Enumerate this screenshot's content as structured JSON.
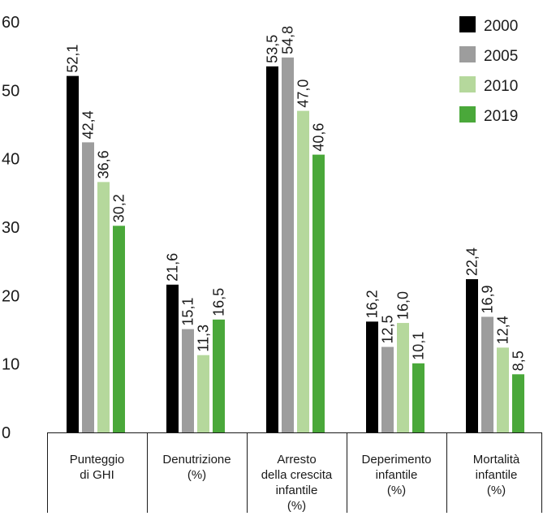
{
  "chart_data": {
    "type": "bar",
    "title": "",
    "xlabel": "",
    "ylabel": "",
    "ylim": [
      0,
      60
    ],
    "yticks": [
      0,
      10,
      20,
      30,
      40,
      50,
      60
    ],
    "grid": false,
    "legend_position": "top-right",
    "categories": [
      [
        "Punteggio",
        "di GHI"
      ],
      [
        "Denutrizione",
        "(%)"
      ],
      [
        "Arresto",
        "della crescita",
        "infantile",
        "(%)"
      ],
      [
        "Deperimento",
        "infantile",
        "(%)"
      ],
      [
        "Mortalità",
        "infantile",
        "(%)"
      ]
    ],
    "series": [
      {
        "name": "2000",
        "color": "#000000",
        "values": [
          52.1,
          21.6,
          53.5,
          16.2,
          22.4
        ],
        "labels": [
          "52,1",
          "21,6",
          "53,5",
          "16,2",
          "22,4"
        ]
      },
      {
        "name": "2005",
        "color": "#9d9d9d",
        "values": [
          42.4,
          15.1,
          54.8,
          12.5,
          16.9
        ],
        "labels": [
          "42,4",
          "15,1",
          "54,8",
          "12,5",
          "16,9"
        ]
      },
      {
        "name": "2010",
        "color": "#b5d89c",
        "values": [
          36.6,
          11.3,
          47.0,
          16.0,
          12.4
        ],
        "labels": [
          "36,6",
          "11,3",
          "47,0",
          "16,0",
          "12,4"
        ]
      },
      {
        "name": "2019",
        "color": "#4aa83a",
        "values": [
          30.2,
          16.5,
          40.6,
          10.1,
          8.5
        ],
        "labels": [
          "30,2",
          "16,5",
          "40,6",
          "10,1",
          "8,5"
        ]
      }
    ]
  }
}
